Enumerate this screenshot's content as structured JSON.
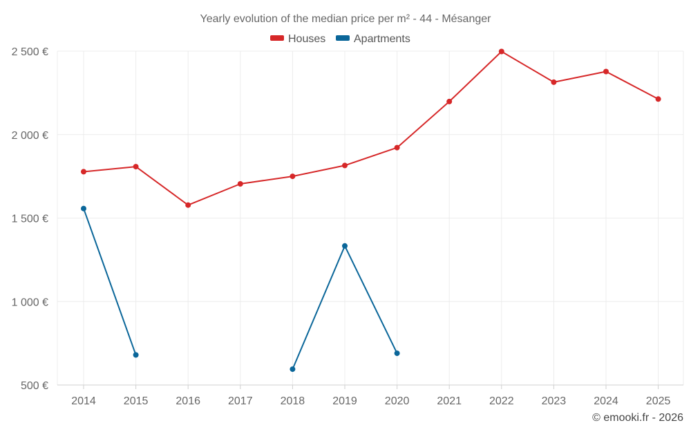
{
  "chart_data": {
    "type": "line",
    "title": "Yearly evolution of the median price per m² - 44 - Mésanger",
    "categories": [
      "2014",
      "2015",
      "2016",
      "2017",
      "2018",
      "2019",
      "2020",
      "2021",
      "2022",
      "2023",
      "2024",
      "2025"
    ],
    "ylim": [
      500,
      2500
    ],
    "yticks": [
      500,
      1000,
      1500,
      2000,
      2500
    ],
    "ytick_labels": [
      "500 €",
      "1 000 €",
      "1 500 €",
      "2 000 €",
      "2 500 €"
    ],
    "grid": true,
    "legend_position": "top-center",
    "series": [
      {
        "name": "Houses",
        "color": "#d62728",
        "values": [
          1778,
          1808,
          1578,
          1705,
          1750,
          1815,
          1922,
          2198,
          2498,
          2314,
          2378,
          2213
        ]
      },
      {
        "name": "Apartments",
        "color": "#0a6699",
        "values": [
          1557,
          680,
          null,
          null,
          595,
          1333,
          690,
          null,
          null,
          null,
          null,
          null
        ]
      }
    ]
  },
  "credit": "© emooki.fr - 2026"
}
